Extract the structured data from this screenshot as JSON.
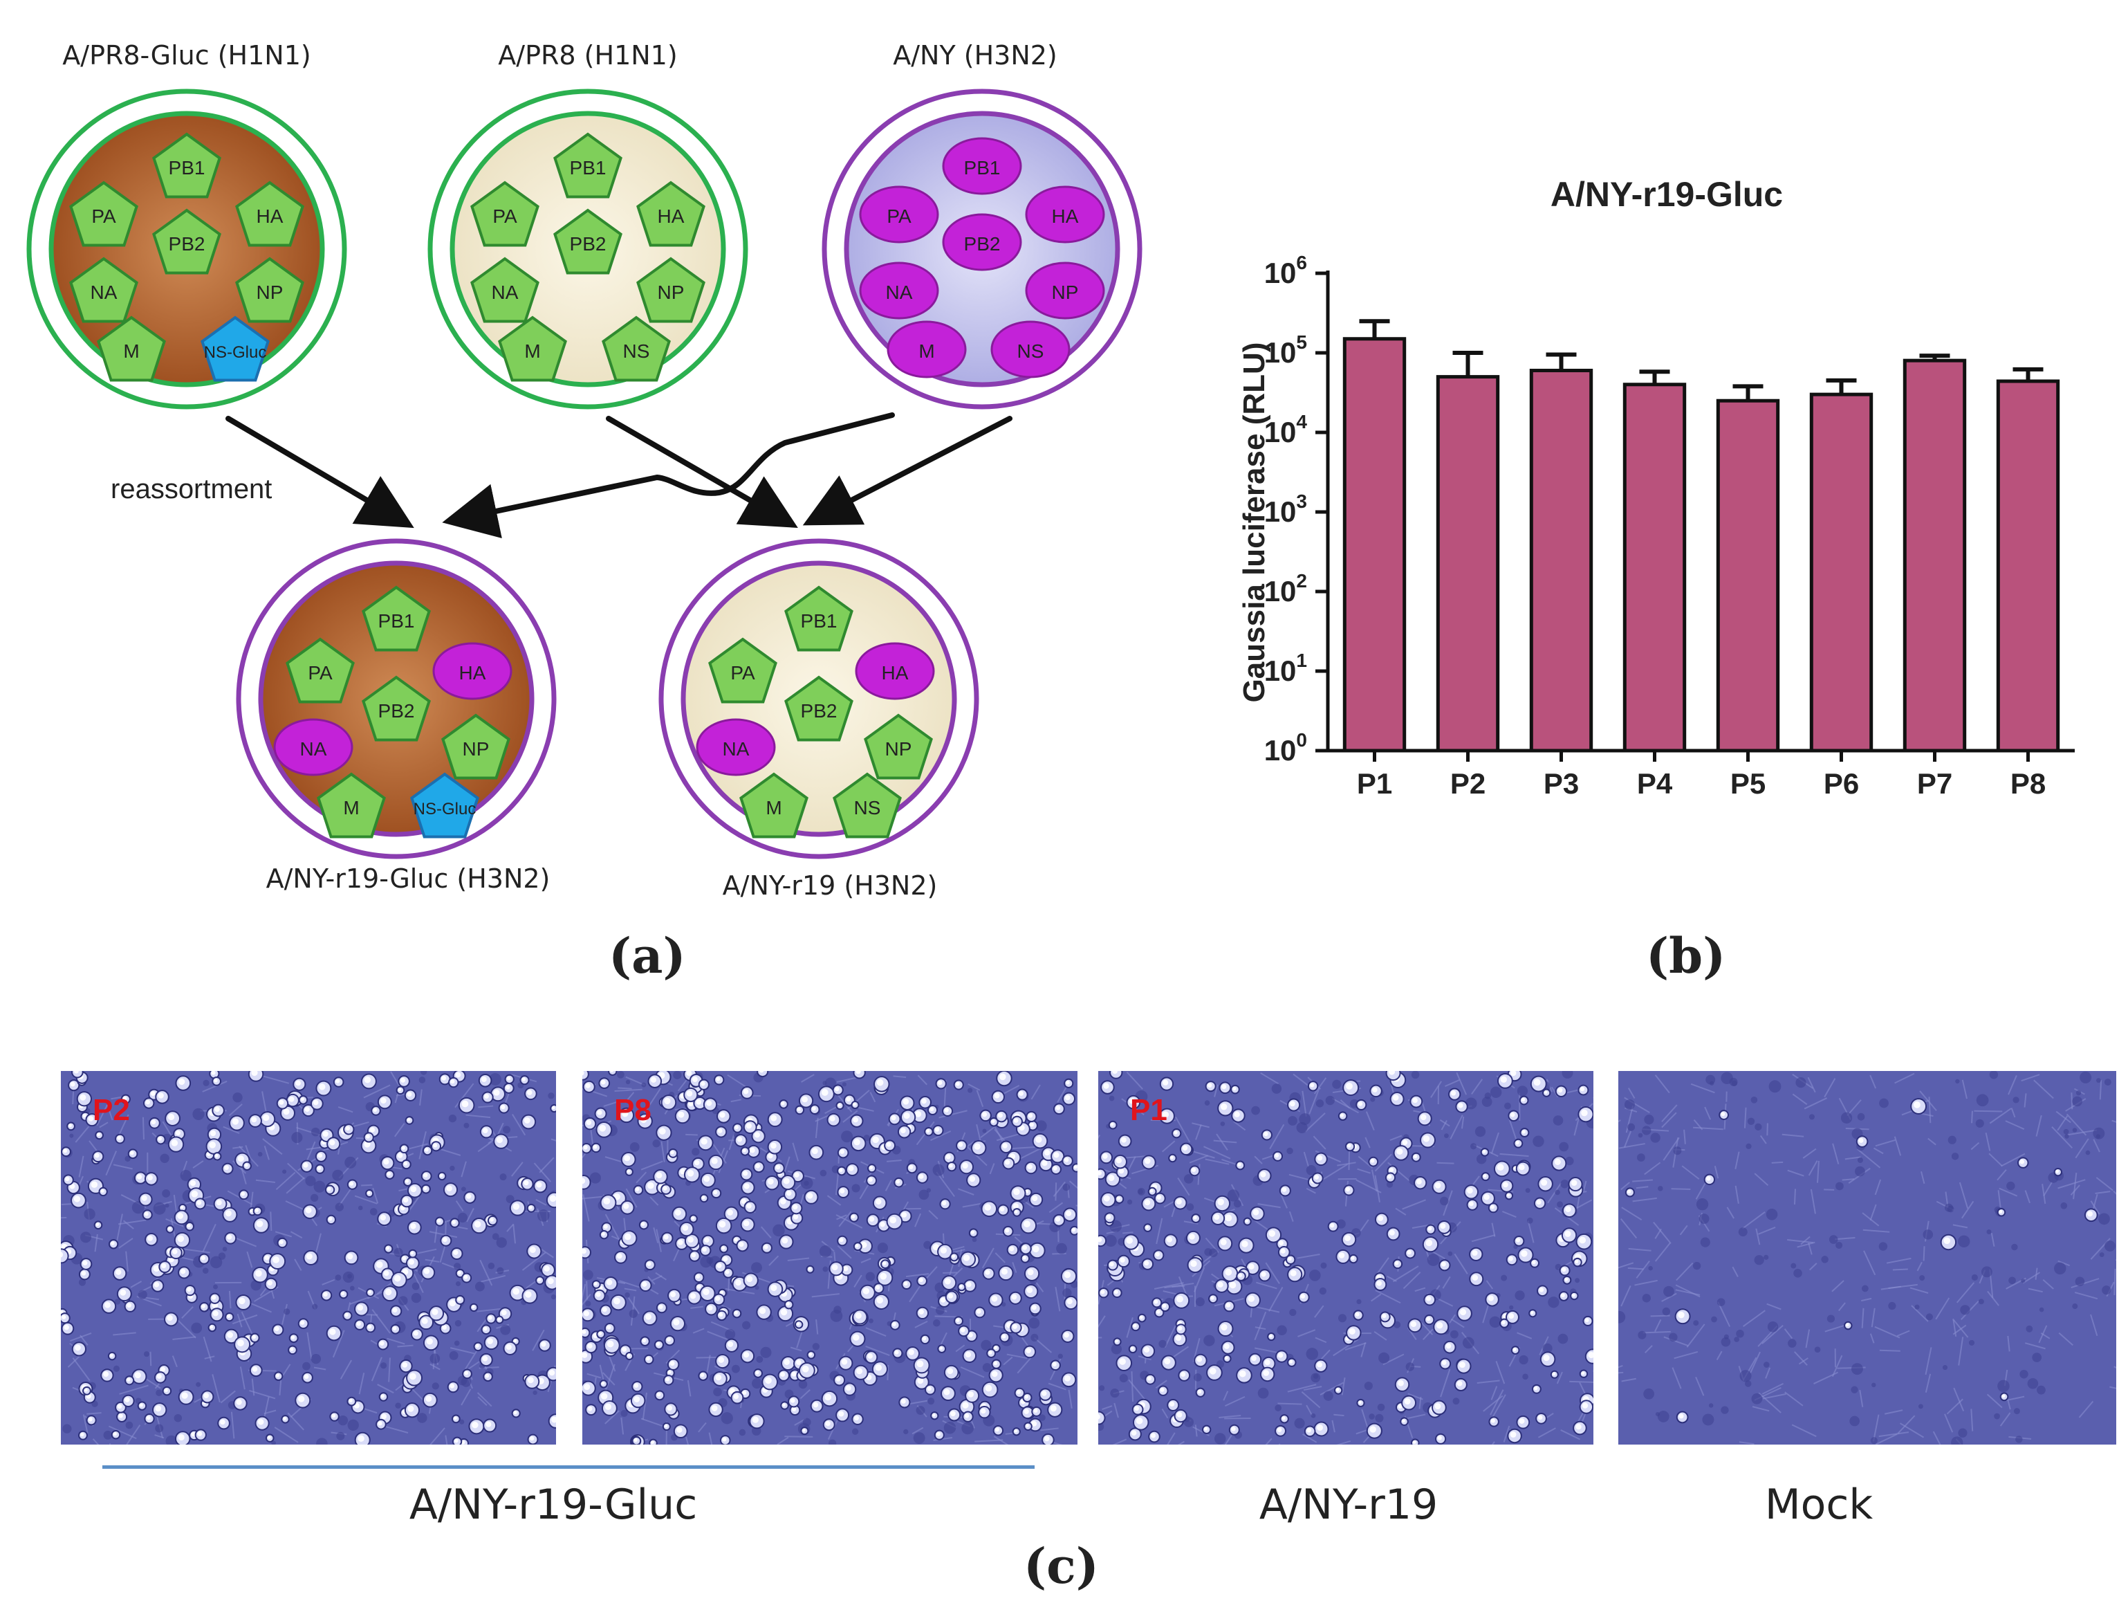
{
  "panel_a": {
    "label": "(a)",
    "arrow_label": "reassortment",
    "parents": [
      {
        "title": "A/PR8-Gluc (H1N1)",
        "fill": "#b5622a",
        "ring": "#2bb04f",
        "segments": [
          {
            "name": "PB1",
            "kind": "pent",
            "color": "#7fcf5a"
          },
          {
            "name": "PA",
            "kind": "pent",
            "color": "#7fcf5a"
          },
          {
            "name": "HA",
            "kind": "pent",
            "color": "#7fcf5a"
          },
          {
            "name": "PB2",
            "kind": "pent",
            "color": "#7fcf5a"
          },
          {
            "name": "NA",
            "kind": "pent",
            "color": "#7fcf5a"
          },
          {
            "name": "NP",
            "kind": "pent",
            "color": "#7fcf5a"
          },
          {
            "name": "M",
            "kind": "pent",
            "color": "#7fcf5a"
          },
          {
            "name": "NS-Gluc",
            "kind": "pent",
            "color": "#20a8e8"
          }
        ]
      },
      {
        "title": "A/PR8 (H1N1)",
        "fill": "#f3ecd5",
        "ring": "#2bb04f",
        "segments": [
          {
            "name": "PB1",
            "kind": "pent",
            "color": "#7fcf5a"
          },
          {
            "name": "PA",
            "kind": "pent",
            "color": "#7fcf5a"
          },
          {
            "name": "HA",
            "kind": "pent",
            "color": "#7fcf5a"
          },
          {
            "name": "PB2",
            "kind": "pent",
            "color": "#7fcf5a"
          },
          {
            "name": "NA",
            "kind": "pent",
            "color": "#7fcf5a"
          },
          {
            "name": "NP",
            "kind": "pent",
            "color": "#7fcf5a"
          },
          {
            "name": "M",
            "kind": "pent",
            "color": "#7fcf5a"
          },
          {
            "name": "NS",
            "kind": "pent",
            "color": "#7fcf5a"
          }
        ]
      },
      {
        "title": "A/NY (H3N2)",
        "fill": "#c8c8ef",
        "ring": "#8a3db0",
        "segments": [
          {
            "name": "PB1",
            "kind": "oval",
            "color": "#c322d8"
          },
          {
            "name": "PA",
            "kind": "oval",
            "color": "#c322d8"
          },
          {
            "name": "HA",
            "kind": "oval",
            "color": "#c322d8"
          },
          {
            "name": "PB2",
            "kind": "oval",
            "color": "#c322d8"
          },
          {
            "name": "NA",
            "kind": "oval",
            "color": "#c322d8"
          },
          {
            "name": "NP",
            "kind": "oval",
            "color": "#c322d8"
          },
          {
            "name": "M",
            "kind": "oval",
            "color": "#c322d8"
          },
          {
            "name": "NS",
            "kind": "oval",
            "color": "#c322d8"
          }
        ]
      }
    ],
    "progeny": [
      {
        "title": "A/NY-r19-Gluc (H3N2)",
        "fill": "#b5622a",
        "ring": "#8a3db0",
        "segments": [
          {
            "name": "PB1",
            "kind": "pent",
            "color": "#7fcf5a"
          },
          {
            "name": "PA",
            "kind": "pent",
            "color": "#7fcf5a"
          },
          {
            "name": "HA",
            "kind": "oval",
            "color": "#c322d8"
          },
          {
            "name": "PB2",
            "kind": "pent",
            "color": "#7fcf5a"
          },
          {
            "name": "NA",
            "kind": "oval",
            "color": "#c322d8"
          },
          {
            "name": "NP",
            "kind": "pent",
            "color": "#7fcf5a"
          },
          {
            "name": "M",
            "kind": "pent",
            "color": "#7fcf5a"
          },
          {
            "name": "NS-Gluc",
            "kind": "pent",
            "color": "#20a8e8"
          }
        ]
      },
      {
        "title": "A/NY-r19 (H3N2)",
        "fill": "#f3ecd5",
        "ring": "#8a3db0",
        "segments": [
          {
            "name": "PB1",
            "kind": "pent",
            "color": "#7fcf5a"
          },
          {
            "name": "PA",
            "kind": "pent",
            "color": "#7fcf5a"
          },
          {
            "name": "HA",
            "kind": "oval",
            "color": "#c322d8"
          },
          {
            "name": "PB2",
            "kind": "pent",
            "color": "#7fcf5a"
          },
          {
            "name": "NA",
            "kind": "oval",
            "color": "#c322d8"
          },
          {
            "name": "NP",
            "kind": "pent",
            "color": "#7fcf5a"
          },
          {
            "name": "M",
            "kind": "pent",
            "color": "#7fcf5a"
          },
          {
            "name": "NS",
            "kind": "pent",
            "color": "#7fcf5a"
          }
        ]
      }
    ]
  },
  "panel_b": {
    "label": "(b)",
    "chart_data": {
      "type": "bar",
      "title": "A/NY-r19-Gluc",
      "ylabel": "Gaussia luciferase (RLU)",
      "xlabel": "",
      "yscale": "log10",
      "ylim": [
        1,
        1000000
      ],
      "ytick_values": [
        1,
        10,
        100,
        1000,
        10000,
        100000,
        1000000
      ],
      "ytick_labels": [
        {
          "base": "10",
          "exp": "0"
        },
        {
          "base": "10",
          "exp": "1"
        },
        {
          "base": "10",
          "exp": "2"
        },
        {
          "base": "10",
          "exp": "3"
        },
        {
          "base": "10",
          "exp": "4"
        },
        {
          "base": "10",
          "exp": "5"
        },
        {
          "base": "10",
          "exp": "6"
        }
      ],
      "categories": [
        "P1",
        "P2",
        "P3",
        "P4",
        "P5",
        "P6",
        "P7",
        "P8"
      ],
      "values": [
        150000,
        50000,
        60000,
        40000,
        25000,
        30000,
        80000,
        44000
      ],
      "error_upper": [
        250000,
        100000,
        95000,
        58000,
        38000,
        45000,
        92000,
        62000
      ],
      "bar_color": "#b9527c"
    }
  },
  "panel_c": {
    "label": "(c)",
    "images": [
      {
        "tag": "P2",
        "density": 320
      },
      {
        "tag": "P8",
        "density": 420
      },
      {
        "tag": "P1",
        "density": 260
      },
      {
        "tag": "",
        "density": 14
      }
    ],
    "captions": {
      "group1": "A/NY-r19-Gluc",
      "group2": "A/NY-r19",
      "group3": "Mock"
    }
  }
}
